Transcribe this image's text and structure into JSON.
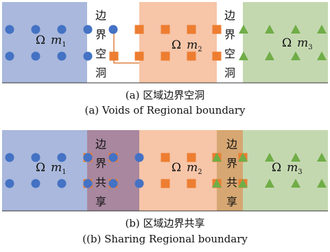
{
  "panel_a": {
    "region_labels": {
      "m1": "m",
      "m1_sub": "1",
      "m2": "m",
      "m2_sub": "2",
      "m3": "m",
      "m3_sub": "3",
      "omega": "Ω"
    },
    "boundary_label_left": [
      "边",
      "界",
      "空",
      "洞"
    ],
    "boundary_label_right": [
      "边",
      "界",
      "空",
      "洞"
    ],
    "caption_zh": "(a) 区域边界空洞",
    "caption_en": "(a) Voids of Regional boundary"
  },
  "panel_b": {
    "region_labels": {
      "m1": "m",
      "m1_sub": "1",
      "m2": "m",
      "m2_sub": "2",
      "m3": "m",
      "m3_sub": "3",
      "omega": "Ω"
    },
    "boundary_label_left": [
      "边",
      "界",
      "共",
      "享"
    ],
    "boundary_label_right": [
      "边",
      "界",
      "共",
      "享"
    ],
    "caption_zh": "(b) 区域边界共享",
    "caption_en": "((b) Sharing Regional boundary"
  },
  "colors": {
    "region_blue": "#a9b8dc",
    "region_orange": "#f7c5a8",
    "region_green": "#c4d8b0",
    "shared_left": "#a8879f",
    "shared_right": "#d6a772",
    "circle": "#4472c4",
    "square": "#ed7d31",
    "triangle": "#70ad47",
    "gap_outline": "#e08040"
  },
  "icons": {
    "circle": "circle-node-icon",
    "square": "square-node-icon",
    "triangle": "triangle-node-icon"
  }
}
